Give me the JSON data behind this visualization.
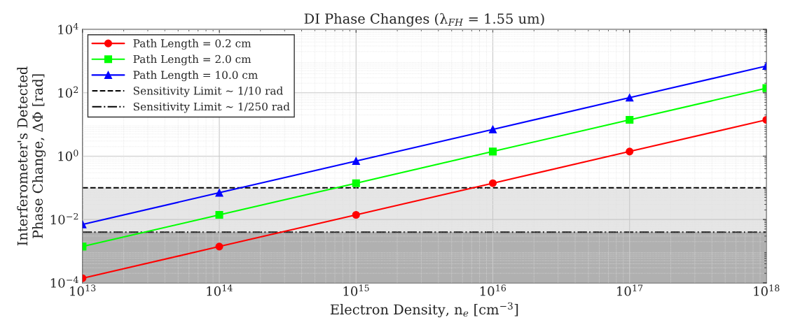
{
  "chart_data": {
    "type": "line",
    "title": "DI Phase Changes (λ$_{FH}$ = 1.55 um)",
    "xlabel": "Electron Density, n$_{e}$ [cm$^{−3}$]",
    "ylabel": "Interferometer's Detected\nPhase Change, ΔΦ [rad]",
    "x": [
      10000000000000.0,
      100000000000000.0,
      1000000000000000.0,
      1e+16,
      1e+17,
      1e+18
    ],
    "series": [
      {
        "name": "Path Length = 0.2 cm",
        "color": "#ff0000",
        "marker": "circle",
        "values": [
          0.00014,
          0.0014,
          0.014,
          0.14,
          1.4,
          14
        ]
      },
      {
        "name": "Path Length = 2.0 cm",
        "color": "#00ff00",
        "marker": "square",
        "values": [
          0.0014,
          0.014,
          0.14,
          1.4,
          14,
          140
        ]
      },
      {
        "name": "Path Length = 10.0 cm",
        "color": "#0000ff",
        "marker": "triangle",
        "values": [
          0.007,
          0.07,
          0.7,
          7,
          70,
          700
        ]
      }
    ],
    "ref_lines": [
      {
        "axis": "y",
        "value": 0.1,
        "label": "Sensitivity Limit ∼ 1/10 rad",
        "color": "#000000",
        "line_style": "dashed"
      },
      {
        "axis": "y",
        "value": 0.004,
        "label": "Sensitivity Limit ∼ 1/250 rad",
        "color": "#000000",
        "line_style": "dashdot"
      }
    ],
    "bands": [
      {
        "axis": "y",
        "from": 0.0001,
        "to": 0.1,
        "color": "#e6e6e6"
      },
      {
        "axis": "y",
        "from": 0.0001,
        "to": 0.004,
        "color": "#b0b0b0"
      }
    ],
    "log": "xy",
    "xlim": [
      10000000000000.0,
      1e+18
    ],
    "xticks": [
      {
        "value": 10000000000000.0,
        "label": "10$^{13}$"
      },
      {
        "value": 100000000000000.0,
        "label": "10$^{14}$"
      },
      {
        "value": 1000000000000000.0,
        "label": "10$^{15}$"
      },
      {
        "value": 1e+16,
        "label": "10$^{16}$"
      },
      {
        "value": 1e+17,
        "label": "10$^{17}$"
      },
      {
        "value": 1e+18,
        "label": "10$^{18}$"
      }
    ],
    "ylim": [
      0.0001,
      10000
    ],
    "yticks": [
      {
        "value": 0.0001,
        "label": "10$^{−4}$"
      },
      {
        "value": 0.01,
        "label": "10$^{−2}$"
      },
      {
        "value": 1,
        "label": "10$^{0}$"
      },
      {
        "value": 100,
        "label": "10$^{2}$"
      },
      {
        "value": 10000,
        "label": "10$^{4}$"
      }
    ],
    "grid": true,
    "legend": "top left",
    "line_style": "solid"
  }
}
